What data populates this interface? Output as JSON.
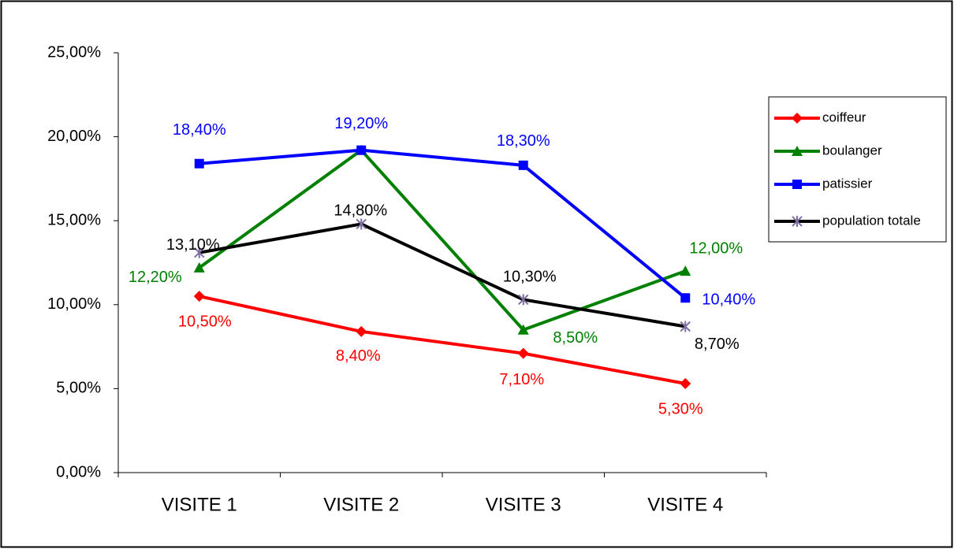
{
  "chart_data": {
    "type": "line",
    "categories": [
      "VISITE 1",
      "VISITE 2",
      "VISITE 3",
      "VISITE 4"
    ],
    "series": [
      {
        "name": "coiffeur",
        "color": "#ff0000",
        "marker": "diamond",
        "values": [
          10.5,
          8.4,
          7.1,
          5.3
        ],
        "value_labels": [
          "10,50%",
          "8,40%",
          "7,10%",
          "5,30%"
        ]
      },
      {
        "name": "boulanger",
        "color": "#008000",
        "marker": "triangle",
        "values": [
          12.2,
          19.2,
          8.5,
          12.0
        ],
        "value_labels": [
          "12,20%",
          null,
          "8,50%",
          "12,00%"
        ]
      },
      {
        "name": "patissier",
        "color": "#0000ff",
        "marker": "square",
        "values": [
          18.4,
          19.2,
          18.3,
          10.4
        ],
        "value_labels": [
          "18,40%",
          "19,20%",
          "18,30%",
          "10,40%"
        ]
      },
      {
        "name": "population totale",
        "color": "#000000",
        "marker": "asterisk",
        "marker_color": "#7f6fa0",
        "values": [
          13.1,
          14.8,
          10.3,
          8.7
        ],
        "value_labels": [
          "13,10%",
          "14,80%",
          "10,30%",
          "8,70%"
        ]
      }
    ],
    "ylim": [
      0,
      25
    ],
    "yticks": [
      {
        "value": 0,
        "label": "0,00%"
      },
      {
        "value": 5,
        "label": "5,00%"
      },
      {
        "value": 10,
        "label": "10,00%"
      },
      {
        "value": 15,
        "label": "15,00%"
      },
      {
        "value": 20,
        "label": "20,00%"
      },
      {
        "value": 25,
        "label": "25,00%"
      }
    ],
    "grid": false,
    "legend": "right"
  }
}
